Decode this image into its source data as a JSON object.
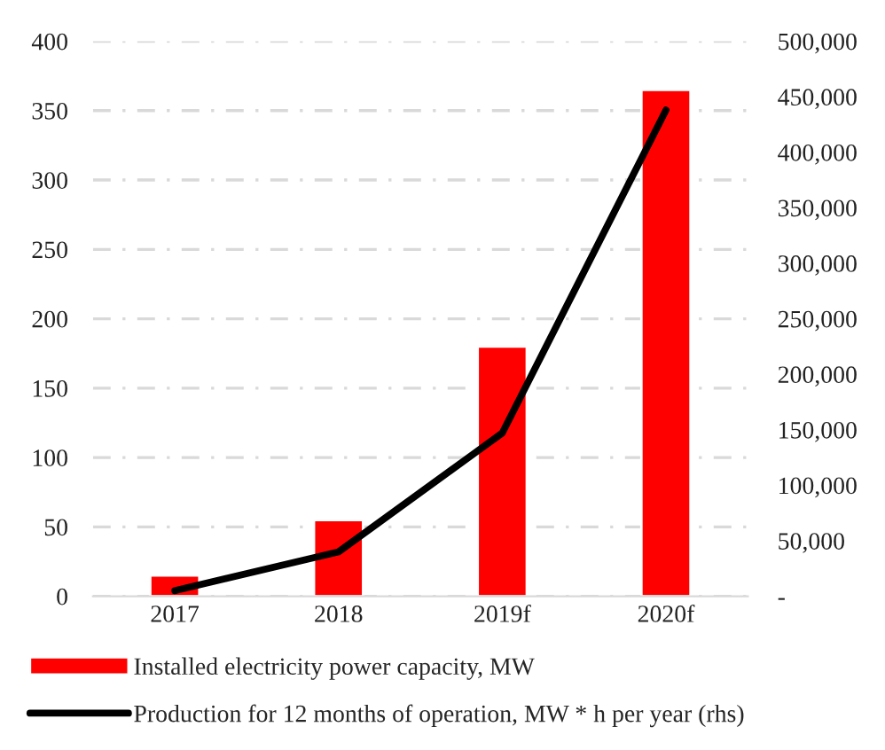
{
  "chart_data": {
    "type": "bar",
    "categories": [
      "2017",
      "2018",
      "2019f",
      "2020f"
    ],
    "series": [
      {
        "name": "Installed electricity power capacity, MW",
        "color": "#ff0000",
        "values": [
          15,
          55,
          180,
          365
        ]
      },
      {
        "name": "Production for 12 months of operation, MW * h per year (rhs)",
        "type": "line",
        "axis": "y2",
        "color": "#000000",
        "values": [
          5000,
          40000,
          147000,
          438000
        ]
      }
    ],
    "ylim": [
      0,
      400
    ],
    "yticks": [
      0,
      50,
      100,
      150,
      200,
      250,
      300,
      350,
      400
    ],
    "y2lim": [
      0,
      500000
    ],
    "y2ticks": [
      {
        "value": 0,
        "label": "-"
      },
      {
        "value": 50000,
        "label": "50,000"
      },
      {
        "value": 100000,
        "label": "100,000"
      },
      {
        "value": 150000,
        "label": "150,000"
      },
      {
        "value": 200000,
        "label": "200,000"
      },
      {
        "value": 250000,
        "label": "250,000"
      },
      {
        "value": 300000,
        "label": "300,000"
      },
      {
        "value": 350000,
        "label": "350,000"
      },
      {
        "value": 400000,
        "label": "400,000"
      },
      {
        "value": 450000,
        "label": "450,000"
      },
      {
        "value": 500000,
        "label": "500,000"
      }
    ],
    "grid": "y",
    "legend": "bottom",
    "marker": "none",
    "line_style": "solid"
  }
}
